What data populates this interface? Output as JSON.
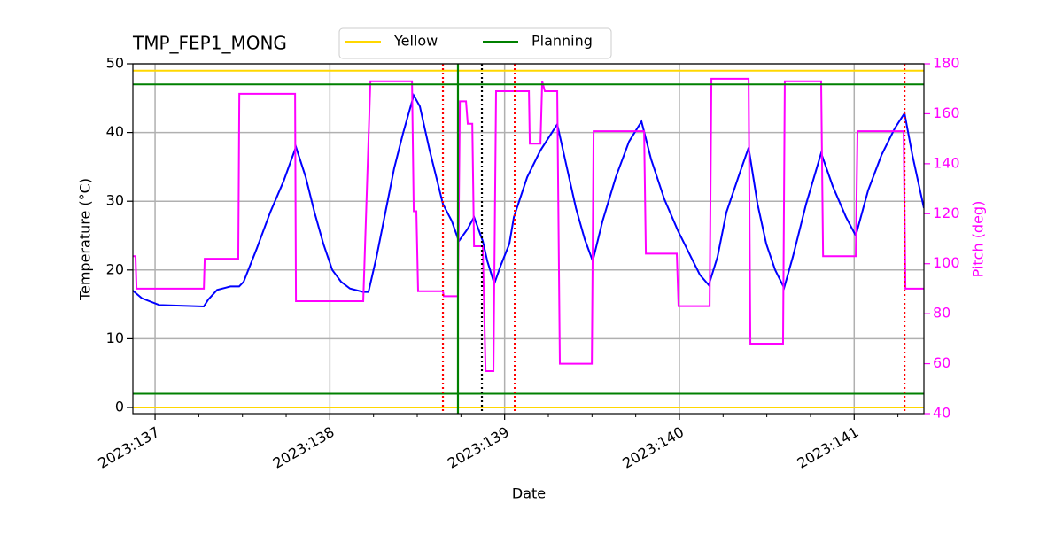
{
  "chart_data": {
    "type": "line",
    "title": "TMP_FEP1_MONG",
    "xlabel": "Date",
    "ylabel": "Temperature (°C)",
    "y2label": "Pitch (deg)",
    "xlim": [
      136.873,
      141.399
    ],
    "xticks": [
      {
        "value": 137,
        "label": "2023:137"
      },
      {
        "value": 138,
        "label": "2023:138"
      },
      {
        "value": 139,
        "label": "2023:139"
      },
      {
        "value": 140,
        "label": "2023:140"
      },
      {
        "value": 141,
        "label": "2023:141"
      }
    ],
    "xminorticks": [
      137.25,
      137.5,
      137.75,
      138.25,
      138.5,
      138.75,
      139.25,
      139.5,
      139.75,
      140.25,
      140.5,
      140.75,
      141.25
    ],
    "ylim": [
      -0.9,
      50
    ],
    "yticks": [
      0,
      10,
      20,
      30,
      40,
      50
    ],
    "y2lim": [
      40,
      180
    ],
    "y2ticks": [
      40,
      60,
      80,
      100,
      120,
      140,
      160,
      180
    ],
    "y2color": "magenta",
    "grid": true,
    "legend": "top",
    "series": [
      {
        "color": "blue",
        "axis": "y",
        "x": [
          136.873,
          136.924,
          137.025,
          137.279,
          137.304,
          137.355,
          137.431,
          137.481,
          137.507,
          137.583,
          137.659,
          137.735,
          137.806,
          137.862,
          137.912,
          137.963,
          138.014,
          138.064,
          138.115,
          138.191,
          138.221,
          138.267,
          138.318,
          138.368,
          138.419,
          138.48,
          138.515,
          138.571,
          138.647,
          138.698,
          138.738,
          138.789,
          138.825,
          138.875,
          138.901,
          138.941,
          138.977,
          139.027,
          139.053,
          139.129,
          139.205,
          139.301,
          139.357,
          139.408,
          139.458,
          139.504,
          139.56,
          139.636,
          139.712,
          139.783,
          139.838,
          139.914,
          139.99,
          140.066,
          140.117,
          140.168,
          140.218,
          140.269,
          140.345,
          140.396,
          140.447,
          140.497,
          140.548,
          140.599,
          140.649,
          140.725,
          140.811,
          140.877,
          140.953,
          141.009,
          141.08,
          141.156,
          141.232,
          141.288,
          141.333,
          141.399
        ],
        "values": [
          17.0,
          15.9,
          14.9,
          14.7,
          15.7,
          17.1,
          17.6,
          17.6,
          18.3,
          23.2,
          28.4,
          32.9,
          37.9,
          33.5,
          28.4,
          23.8,
          20.0,
          18.3,
          17.3,
          16.8,
          16.8,
          21.9,
          28.4,
          34.8,
          39.9,
          45.4,
          43.8,
          37.4,
          29.6,
          27.1,
          24.2,
          26.0,
          27.7,
          24.2,
          21.3,
          18.0,
          20.6,
          23.8,
          27.7,
          33.5,
          37.4,
          41.2,
          34.8,
          29.0,
          24.5,
          21.3,
          27.1,
          33.5,
          38.7,
          41.6,
          36.1,
          30.3,
          25.8,
          21.9,
          19.3,
          17.8,
          21.9,
          28.4,
          34.1,
          37.8,
          29.6,
          23.8,
          20.0,
          17.4,
          21.9,
          29.6,
          37.0,
          32.2,
          27.7,
          25.0,
          31.6,
          36.7,
          40.6,
          42.8,
          36.7,
          29.0
        ]
      },
      {
        "color": "magenta",
        "axis": "y2",
        "x": [
          136.873,
          136.888,
          136.894,
          137.279,
          137.284,
          137.476,
          137.482,
          137.801,
          137.806,
          138.191,
          138.232,
          138.47,
          138.48,
          138.495,
          138.505,
          138.647,
          138.652,
          138.733,
          138.744,
          138.779,
          138.789,
          138.815,
          138.825,
          138.875,
          138.891,
          138.936,
          138.951,
          139.139,
          139.144,
          139.205,
          139.215,
          139.23,
          139.301,
          139.316,
          139.499,
          139.509,
          139.798,
          139.808,
          139.985,
          139.995,
          140.173,
          140.183,
          140.396,
          140.406,
          140.593,
          140.603,
          140.811,
          140.822,
          141.009,
          141.019,
          141.283,
          141.293,
          141.399
        ],
        "values": [
          103,
          103,
          90,
          90,
          102,
          102,
          168,
          168,
          85,
          85,
          173,
          173,
          121,
          121,
          89,
          89,
          87,
          87,
          165,
          165,
          156,
          156,
          107,
          107,
          57,
          57,
          169,
          169,
          148,
          148,
          173,
          169,
          169,
          60,
          60,
          153,
          153,
          104,
          104,
          83,
          83,
          174,
          174,
          68,
          68,
          173,
          173,
          103,
          103,
          153,
          153,
          90,
          90
        ]
      }
    ],
    "limits": [
      {
        "name": "Yellow",
        "color": "gold",
        "values": [
          0,
          49
        ]
      },
      {
        "name": "Planning",
        "color": "green",
        "values": [
          2,
          47
        ]
      }
    ],
    "vlines": [
      {
        "x": 138.733,
        "color": "green",
        "style": "solid"
      },
      {
        "x": 138.87,
        "color": "black",
        "style": "dotted"
      },
      {
        "x": 138.647,
        "color": "red",
        "style": "dotted"
      },
      {
        "x": 139.058,
        "color": "red",
        "style": "dotted"
      },
      {
        "x": 141.288,
        "color": "red",
        "style": "dotted"
      }
    ]
  }
}
